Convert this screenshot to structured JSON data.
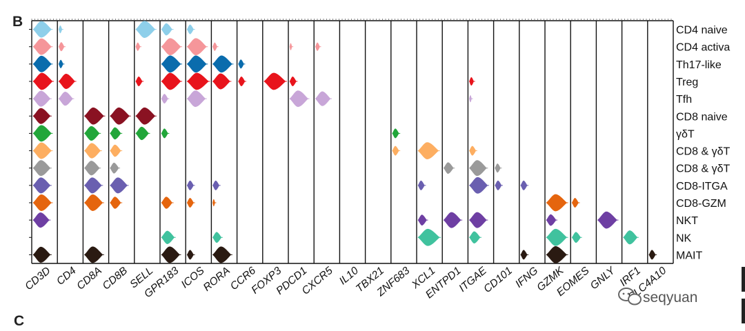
{
  "panel_letters": {
    "top": "B",
    "bottom": "C"
  },
  "watermark": {
    "text": "seqyuan",
    "icon": "wechat-icon"
  },
  "chart_data": {
    "type": "violin-grid",
    "genes": [
      "CD3D",
      "CD4",
      "CD8A",
      "CD8B",
      "SELL",
      "GPR183",
      "ICOS",
      "RORA",
      "CCR6",
      "FOXP3",
      "PDCD1",
      "CXCR5",
      "IL10",
      "TBX21",
      "ZNF683",
      "XCL1",
      "ENTPD1",
      "ITGAE",
      "CD101",
      "IFNG",
      "GZMK",
      "EOMES",
      "GNLY",
      "IRF1",
      "SLC4A10"
    ],
    "clusters": [
      {
        "name": "CD4 naive",
        "color": "#8ecfea"
      },
      {
        "name": "CD4 activa",
        "color": "#f5969a"
      },
      {
        "name": "Th17-like",
        "color": "#0a6cad"
      },
      {
        "name": "Treg",
        "color": "#e8141c"
      },
      {
        "name": "Tfh",
        "color": "#c8a6d8"
      },
      {
        "name": "CD8 naive",
        "color": "#8a1222"
      },
      {
        "name": "γδT",
        "color": "#22a63a"
      },
      {
        "name": "CD8 & γδT",
        "color": "#fdae61"
      },
      {
        "name": "CD8 & γδT",
        "color": "#9a9a9a"
      },
      {
        "name": "CD8-ITGA",
        "color": "#6a5fb0"
      },
      {
        "name": "CD8-GZM",
        "color": "#e5650e"
      },
      {
        "name": "NKT",
        "color": "#6e3fa3"
      },
      {
        "name": "NK",
        "color": "#40c29e"
      },
      {
        "name": "MAIT",
        "color": "#2a1a12"
      }
    ],
    "expression": [
      [
        0.85,
        0.15,
        0,
        0,
        0.9,
        0.5,
        0.3,
        0,
        0,
        0,
        0,
        0,
        0,
        0,
        0,
        0,
        0,
        0,
        0,
        0,
        0,
        0,
        0,
        0,
        0
      ],
      [
        0.85,
        0.25,
        0,
        0,
        0.2,
        0.9,
        0.9,
        0.2,
        0,
        0,
        0.1,
        0.2,
        0,
        0,
        0,
        0,
        0,
        0,
        0,
        0,
        0,
        0,
        0,
        0,
        0
      ],
      [
        0.85,
        0.2,
        0,
        0,
        0,
        0.9,
        0.9,
        0.9,
        0.25,
        0,
        0,
        0,
        0,
        0,
        0,
        0,
        0,
        0,
        0,
        0,
        0,
        0,
        0,
        0,
        0
      ],
      [
        0.9,
        0.75,
        0,
        0,
        0.3,
        0.9,
        1.0,
        0.8,
        0.3,
        1.0,
        0.3,
        0,
        0,
        0,
        0,
        0,
        0,
        0.2,
        0,
        0,
        0,
        0,
        0,
        0,
        0
      ],
      [
        0.8,
        0.65,
        0,
        0,
        0,
        0.3,
        0.85,
        0,
        0,
        0,
        0.85,
        0.7,
        0,
        0,
        0,
        0,
        0,
        0.1,
        0,
        0,
        0,
        0,
        0,
        0,
        0
      ],
      [
        0.8,
        0,
        0.9,
        0.9,
        0.9,
        0,
        0,
        0,
        0,
        0,
        0,
        0,
        0,
        0,
        0,
        0,
        0,
        0,
        0,
        0,
        0,
        0,
        0,
        0,
        0
      ],
      [
        0.85,
        0,
        0.7,
        0.5,
        0.6,
        0.3,
        0,
        0,
        0,
        0,
        0,
        0,
        0,
        0,
        0.3,
        0,
        0,
        0,
        0,
        0,
        0,
        0,
        0,
        0,
        0
      ],
      [
        0.85,
        0,
        0.75,
        0.5,
        0,
        0,
        0,
        0,
        0,
        0,
        0,
        0,
        0,
        0,
        0.3,
        0.95,
        0,
        0.3,
        0,
        0,
        0,
        0,
        0,
        0,
        0
      ],
      [
        0.8,
        0,
        0.7,
        0.4,
        0,
        0,
        0,
        0,
        0,
        0,
        0,
        0,
        0,
        0,
        0,
        0,
        0.45,
        0.8,
        0.25,
        0,
        0,
        0,
        0,
        0,
        0
      ],
      [
        0.8,
        0,
        0.8,
        0.8,
        0,
        0,
        0.3,
        0.3,
        0,
        0,
        0,
        0,
        0,
        0,
        0,
        0.3,
        0,
        0.85,
        0.3,
        0.3,
        0,
        0,
        0,
        0,
        0
      ],
      [
        0.85,
        0,
        0.85,
        0.5,
        0,
        0.5,
        0.3,
        0.1,
        0,
        0,
        0,
        0,
        0,
        0,
        0,
        0,
        0,
        0,
        0,
        0,
        0.95,
        0.3,
        0,
        0,
        0
      ],
      [
        0.75,
        0,
        0,
        0,
        0,
        0,
        0,
        0,
        0,
        0,
        0,
        0,
        0,
        0,
        0,
        0.4,
        0.8,
        0.8,
        0,
        0,
        0.45,
        0,
        0.9,
        0,
        0
      ],
      [
        0,
        0,
        0,
        0,
        0,
        0.6,
        0,
        0.4,
        0,
        0,
        0,
        0,
        0,
        0,
        0,
        1.0,
        0,
        0.5,
        0,
        0,
        0.95,
        0.4,
        0,
        0.65,
        0
      ],
      [
        0.8,
        0,
        0.85,
        0,
        0,
        0.85,
        0.3,
        0.85,
        0,
        0,
        0,
        0,
        0,
        0,
        0,
        0,
        0,
        0,
        0,
        0.3,
        0.95,
        0,
        0,
        0,
        0.3
      ]
    ]
  }
}
